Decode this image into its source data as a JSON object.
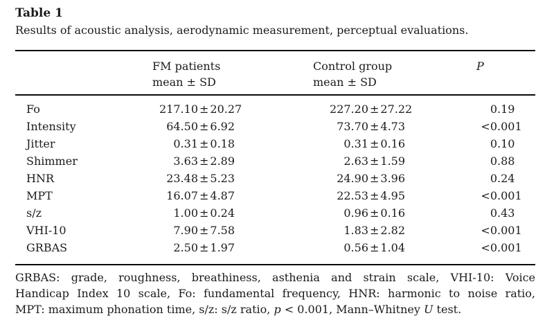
{
  "title": "Table 1",
  "caption": "Results of acoustic analysis, aerodynamic measurement, perceptual evaluations.",
  "table": {
    "plus_minus": "±",
    "header": {
      "col1": "",
      "col2": {
        "line1": "FM patients",
        "line2": "mean ± SD"
      },
      "col3": {
        "line1": "Control group",
        "line2": "mean ± SD"
      },
      "col4": {
        "line1": "P",
        "line2": ""
      }
    },
    "rows": [
      {
        "label": "Fo",
        "fm_mean": "217.10",
        "fm_sd": "20.27",
        "ctrl_mean": "227.20",
        "ctrl_sd": "27.22",
        "p": "0.19"
      },
      {
        "label": "Intensity",
        "fm_mean": "64.50",
        "fm_sd": "6.92",
        "ctrl_mean": "73.70",
        "ctrl_sd": "4.73",
        "p": "<0.001"
      },
      {
        "label": "Jitter",
        "fm_mean": "0.31",
        "fm_sd": "0.18",
        "ctrl_mean": "0.31",
        "ctrl_sd": "0.16",
        "p": "0.10"
      },
      {
        "label": "Shimmer",
        "fm_mean": "3.63",
        "fm_sd": "2.89",
        "ctrl_mean": "2.63",
        "ctrl_sd": "1.59",
        "p": "0.88"
      },
      {
        "label": "HNR",
        "fm_mean": "23.48",
        "fm_sd": "5.23",
        "ctrl_mean": "24.90",
        "ctrl_sd": "3.96",
        "p": "0.24"
      },
      {
        "label": "MPT",
        "fm_mean": "16.07",
        "fm_sd": "4.87",
        "ctrl_mean": "22.53",
        "ctrl_sd": "4.95",
        "p": "<0.001"
      },
      {
        "label": "s/z",
        "fm_mean": "1.00",
        "fm_sd": "0.24",
        "ctrl_mean": "0.96",
        "ctrl_sd": "0.16",
        "p": "0.43"
      },
      {
        "label": "VHI-10",
        "fm_mean": "7.90",
        "fm_sd": "7.58",
        "ctrl_mean": "1.83",
        "ctrl_sd": "2.82",
        "p": "<0.001"
      },
      {
        "label": "GRBAS",
        "fm_mean": "2.50",
        "fm_sd": "1.97",
        "ctrl_mean": "0.56",
        "ctrl_sd": "1.04",
        "p": "<0.001"
      }
    ]
  },
  "footnote": {
    "lines": [
      [
        {
          "t": "GRBAS: grade, roughness, breathiness, asthenia and strain scale, VHI-10: Voice",
          "i": false
        }
      ],
      [
        {
          "t": "Handicap Index 10 scale, Fo: fundamental frequency, HNR: harmonic to noise ratio,",
          "i": false
        }
      ],
      [
        {
          "t": "MPT: maximum phonation time, s/z: s/z ratio, ",
          "i": false
        },
        {
          "t": "p",
          "i": true
        },
        {
          "t": " < 0.001, Mann–Whitney ",
          "i": false
        },
        {
          "t": "U",
          "i": true
        },
        {
          "t": " test.",
          "i": false
        }
      ]
    ]
  },
  "colors": {
    "text": "#1b1b1b",
    "rule": "#0a0a0a",
    "background": "#ffffff"
  }
}
